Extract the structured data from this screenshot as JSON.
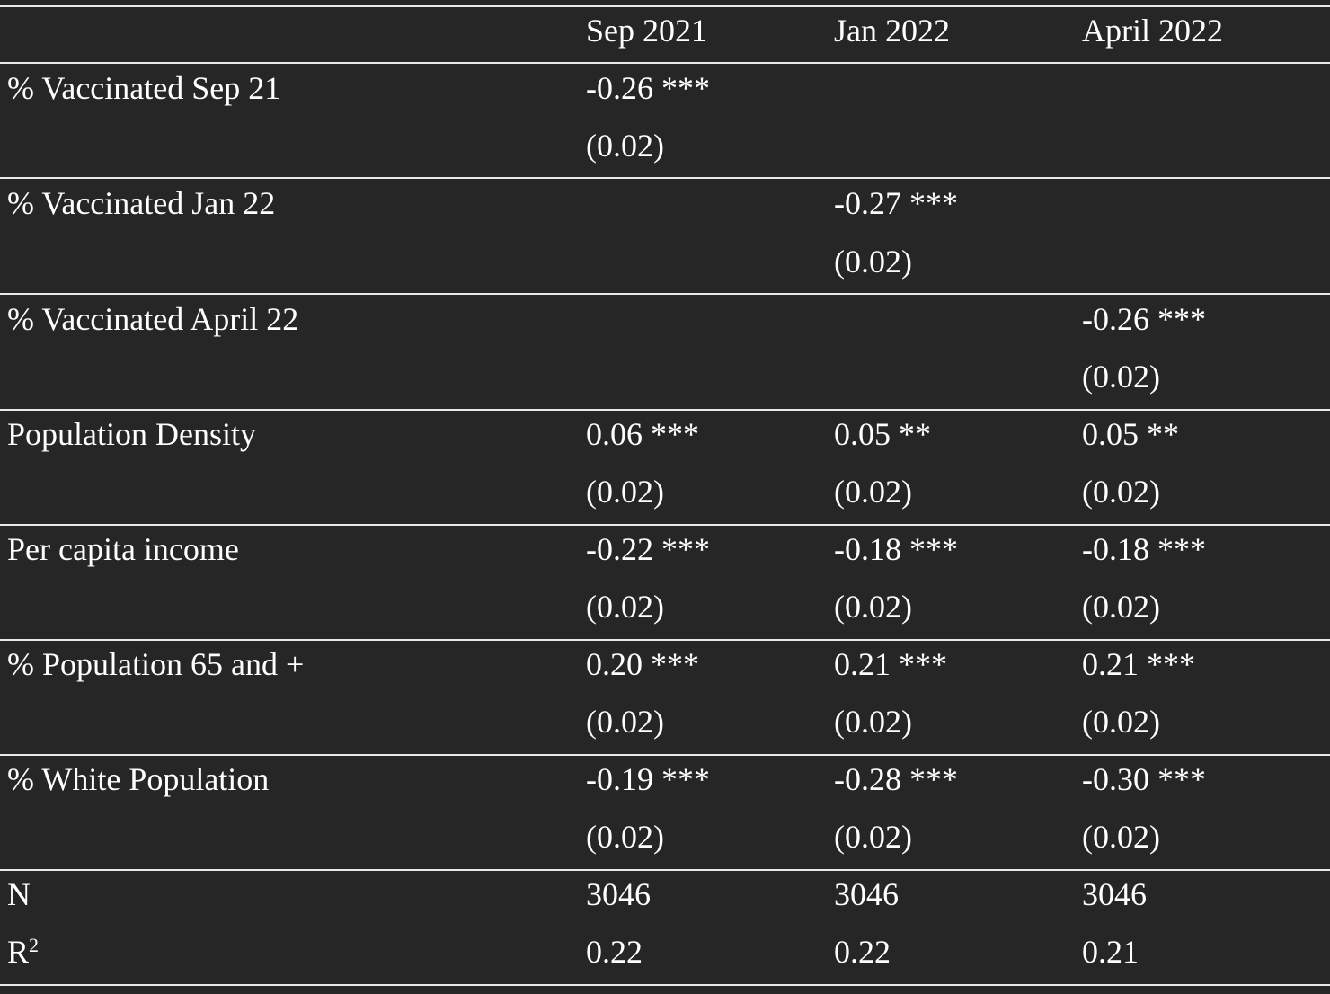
{
  "header": {
    "columns": [
      "",
      "Sep 2021",
      "Jan 2022",
      "April 2022"
    ]
  },
  "rows": [
    {
      "label": "% Vaccinated Sep 21",
      "values": [
        {
          "est": "-0.26 ***",
          "se": "(0.02)"
        },
        {
          "est": "",
          "se": ""
        },
        {
          "est": "",
          "se": ""
        }
      ]
    },
    {
      "label": "% Vaccinated Jan 22",
      "values": [
        {
          "est": "",
          "se": ""
        },
        {
          "est": "-0.27 ***",
          "se": "(0.02)"
        },
        {
          "est": "",
          "se": ""
        }
      ]
    },
    {
      "label": "% Vaccinated April 22",
      "values": [
        {
          "est": "",
          "se": ""
        },
        {
          "est": "",
          "se": ""
        },
        {
          "est": "-0.26 ***",
          "se": "(0.02)"
        }
      ]
    },
    {
      "label": "Population Density",
      "values": [
        {
          "est": "0.06 ***",
          "se": "(0.02)"
        },
        {
          "est": "0.05 **",
          "se": "(0.02)"
        },
        {
          "est": "0.05 **",
          "se": "(0.02)"
        }
      ]
    },
    {
      "label": "Per capita income",
      "values": [
        {
          "est": "-0.22 ***",
          "se": "(0.02)"
        },
        {
          "est": "-0.18 ***",
          "se": "(0.02)"
        },
        {
          "est": "-0.18 ***",
          "se": "(0.02)"
        }
      ]
    },
    {
      "label": "% Population 65 and +",
      "values": [
        {
          "est": "0.20 ***",
          "se": "(0.02)"
        },
        {
          "est": "0.21 ***",
          "se": "(0.02)"
        },
        {
          "est": "0.21 ***",
          "se": "(0.02)"
        }
      ]
    },
    {
      "label": "% White Population",
      "values": [
        {
          "est": "-0.19 ***",
          "se": "(0.02)"
        },
        {
          "est": "-0.28 ***",
          "se": "(0.02)"
        },
        {
          "est": "-0.30 ***",
          "se": "(0.02)"
        }
      ]
    }
  ],
  "footer": {
    "n_label": "N",
    "n_values": [
      "3046",
      "3046",
      "3046"
    ],
    "r2_label": "R",
    "r2_sup": "2",
    "r2_values": [
      "0.22",
      "0.22",
      "0.21"
    ]
  }
}
